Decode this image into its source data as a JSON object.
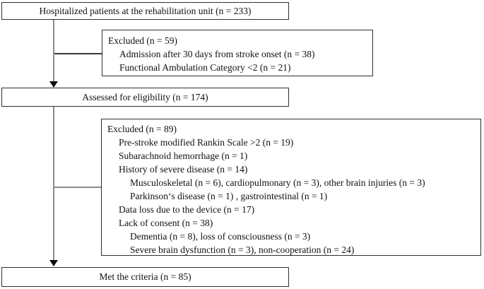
{
  "figure": {
    "boxes": {
      "hospitalized": {
        "label": "Hospitalized patients at the rehabilitation unit (n = 233)"
      },
      "excluded_1": {
        "title": "Excluded (n = 59)",
        "items": [
          "Admission after 30 days from stroke onset (n = 38)",
          "Functional Ambulation Category <2 (n = 21)"
        ]
      },
      "assessed": {
        "label": "Assessed for eligibility (n = 174)"
      },
      "excluded_2": {
        "title": "Excluded (n = 89)",
        "items": [
          "Pre-stroke modified Rankin Scale >2 (n = 19)",
          "Subarachnoid hemorrhage (n = 1)",
          "History of severe disease (n = 14)",
          "Musculoskeletal (n = 6), cardiopulmonary (n = 3), other brain injuries (n = 3)",
          "Parkinson‘s disease (n = 1) , gastrointestinal (n = 1)",
          "Data loss due to the device (n = 17)",
          "Lack of consent (n = 38)",
          "Dementia (n = 8), loss of consciousness (n = 3)",
          "Severe brain dysfunction (n = 3), non-cooperation (n = 24)"
        ]
      },
      "met": {
        "label": "Met the criteria (n = 85)"
      }
    },
    "colors": {
      "box_border": "#2f2f2f",
      "connector_gray": "#8c8c8c",
      "connector_dark": "#3a3a3a",
      "arrow": "#0d0d0d",
      "text": "#111111",
      "background": "#ffffff"
    }
  }
}
